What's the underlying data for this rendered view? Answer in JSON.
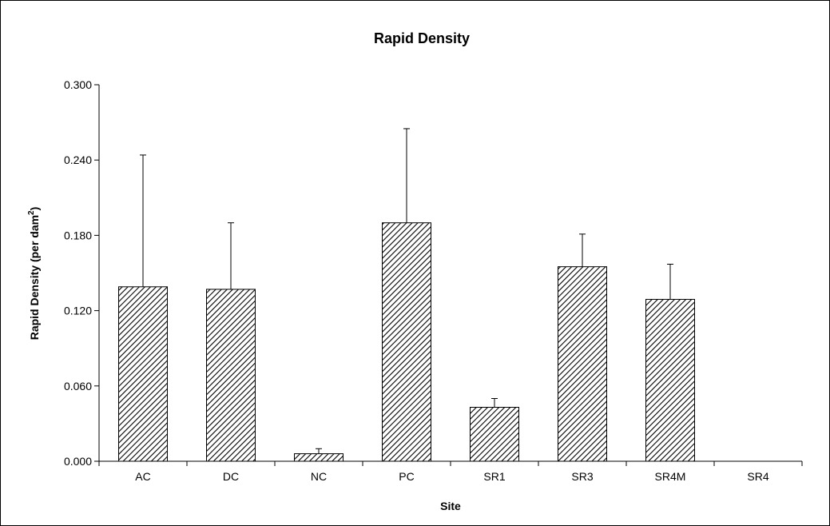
{
  "chart_data": {
    "type": "bar",
    "title": "Rapid Density",
    "xlabel": "Site",
    "ylabel": "Rapid Density (per dam",
    "ylabel_superscript": "2",
    "ylabel_suffix": ")",
    "categories": [
      "AC",
      "DC",
      "NC",
      "PC",
      "SR1",
      "SR3",
      "SR4M",
      "SR4"
    ],
    "values": [
      0.139,
      0.137,
      0.006,
      0.19,
      0.043,
      0.155,
      0.129,
      0.0
    ],
    "error_upper": [
      0.244,
      0.19,
      0.01,
      0.265,
      0.05,
      0.181,
      0.157,
      0.0
    ],
    "ylim": [
      0,
      0.3
    ],
    "yticks": [
      0.0,
      0.06,
      0.12,
      0.18,
      0.24,
      0.3
    ],
    "ytick_labels": [
      "0.000",
      "0.060",
      "0.120",
      "0.180",
      "0.240",
      "0.300"
    ],
    "bar_fill": "diagonal-hatch",
    "bar_color": "#000000",
    "grid": false,
    "legend": "none"
  }
}
